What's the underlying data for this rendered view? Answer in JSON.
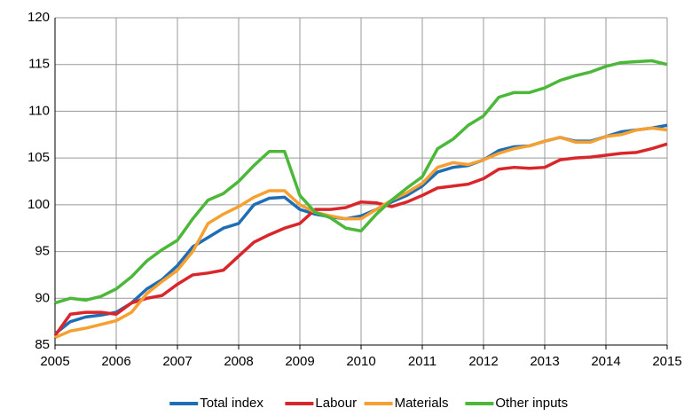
{
  "chart_data": {
    "type": "line",
    "x": [
      2005,
      2005.25,
      2005.5,
      2005.75,
      2006,
      2006.25,
      2006.5,
      2006.75,
      2007,
      2007.25,
      2007.5,
      2007.75,
      2008,
      2008.25,
      2008.5,
      2008.75,
      2009,
      2009.25,
      2009.5,
      2009.75,
      2010,
      2010.25,
      2010.5,
      2010.75,
      2011,
      2011.25,
      2011.5,
      2011.75,
      2012,
      2012.25,
      2012.5,
      2012.75,
      2013,
      2013.25,
      2013.5,
      2013.75,
      2014,
      2014.25,
      2014.5,
      2014.75,
      2015
    ],
    "series": [
      {
        "name": "Total index",
        "color": "#1f6db5",
        "values": [
          86.2,
          87.5,
          88,
          88.2,
          88.5,
          89.5,
          91,
          92,
          93.5,
          95.5,
          96.5,
          97.5,
          98,
          100,
          100.7,
          100.8,
          99.5,
          99,
          98.7,
          98.5,
          98.8,
          99.5,
          100.3,
          101,
          102,
          103.5,
          104,
          104.2,
          104.8,
          105.8,
          106.2,
          106.3,
          106.8,
          107.2,
          106.8,
          106.8,
          107.3,
          107.8,
          108,
          108.2,
          108.5
        ]
      },
      {
        "name": "Labour",
        "color": "#d9262b",
        "values": [
          86,
          88.3,
          88.5,
          88.5,
          88.3,
          89.5,
          90,
          90.3,
          91.5,
          92.5,
          92.7,
          93,
          94.5,
          96,
          96.8,
          97.5,
          98,
          99.5,
          99.5,
          99.7,
          100.3,
          100.2,
          99.8,
          100.3,
          101,
          101.8,
          102,
          102.2,
          102.8,
          103.8,
          104,
          103.9,
          104,
          104.8,
          105,
          105.1,
          105.3,
          105.5,
          105.6,
          106,
          106.5
        ]
      },
      {
        "name": "Materials",
        "color": "#f5a031",
        "values": [
          85.8,
          86.5,
          86.8,
          87.2,
          87.6,
          88.5,
          90.5,
          91.8,
          93,
          95,
          98,
          99,
          99.8,
          100.8,
          101.5,
          101.5,
          100,
          99.2,
          98.8,
          98.5,
          98.5,
          99.5,
          100.5,
          101.3,
          102.3,
          104,
          104.5,
          104.3,
          104.8,
          105.5,
          106,
          106.3,
          106.8,
          107.2,
          106.7,
          106.7,
          107.3,
          107.5,
          108,
          108.2,
          108
        ]
      },
      {
        "name": "Other inputs",
        "color": "#4cb83a",
        "values": [
          89.5,
          90,
          89.8,
          90.2,
          91,
          92.3,
          94,
          95.2,
          96.2,
          98.5,
          100.5,
          101.2,
          102.5,
          104.2,
          105.7,
          105.7,
          101,
          99.2,
          98.6,
          97.5,
          97.2,
          99,
          100.5,
          101.8,
          103,
          106,
          107,
          108.5,
          109.5,
          111.5,
          112,
          112,
          112.5,
          113.3,
          113.8,
          114.2,
          114.8,
          115.2,
          115.3,
          115.4,
          115
        ]
      }
    ],
    "xlim": [
      2005,
      2015
    ],
    "xticks": [
      2005,
      2006,
      2007,
      2008,
      2009,
      2010,
      2011,
      2012,
      2013,
      2014,
      2015
    ],
    "ylim": [
      85,
      120
    ],
    "yticks": [
      85,
      90,
      95,
      100,
      105,
      110,
      115,
      120
    ],
    "grid": true,
    "legend": "bottom"
  }
}
